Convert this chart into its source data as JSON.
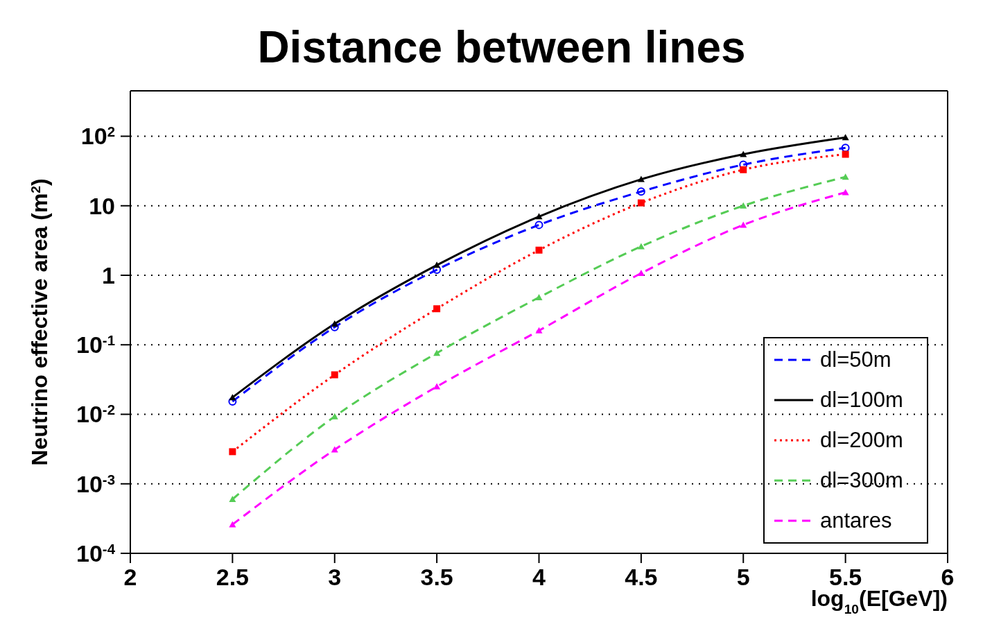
{
  "chart_data": {
    "type": "line",
    "title": "Distance between lines",
    "xlabel": "log$_{10}$(E[GeV])",
    "ylabel": "Neutrino effective area (m$^{2}$)",
    "x": [
      2.5,
      3,
      3.5,
      4,
      4.5,
      5,
      5.5
    ],
    "series": [
      {
        "name": "dl=50m",
        "color": "#0000ff",
        "line_style": "dashed",
        "marker": "circle",
        "values": [
          0.0153,
          0.18,
          1.2,
          5.3,
          16,
          39,
          68
        ]
      },
      {
        "name": "dl=100m",
        "color": "#000000",
        "line_style": "solid",
        "marker": "triangle",
        "values": [
          0.0175,
          0.2,
          1.4,
          7,
          24,
          55,
          96
        ]
      },
      {
        "name": "dl=200m",
        "color": "#ff0000",
        "line_style": "dotted",
        "marker": "square",
        "values": [
          0.0029,
          0.037,
          0.33,
          2.3,
          11,
          33,
          55
        ]
      },
      {
        "name": "dl=300m",
        "color": "#55cc55",
        "line_style": "dashed",
        "marker": "triangle",
        "values": [
          0.0006,
          0.0093,
          0.076,
          0.48,
          2.6,
          10,
          26
        ]
      },
      {
        "name": "antares",
        "color": "#ff00ff",
        "line_style": "dashed",
        "marker": "triangle",
        "values": [
          0.00026,
          0.0031,
          0.025,
          0.16,
          1.07,
          5.3,
          15.6
        ]
      }
    ],
    "log": "y",
    "xlim": [
      2,
      6
    ],
    "xticks": [
      2,
      2.5,
      3,
      3.5,
      4,
      4.5,
      5,
      5.5,
      6
    ],
    "ylim": [
      0.0001,
      450
    ],
    "yticks": [
      {
        "value": 0.0001,
        "label": "10$^{-4}$"
      },
      {
        "value": 0.001,
        "label": "10$^{-3}$"
      },
      {
        "value": 0.01,
        "label": "10$^{-2}$"
      },
      {
        "value": 0.1,
        "label": "10$^{-1}$"
      },
      1,
      10,
      {
        "value": 100,
        "label": "10$^{2}$"
      }
    ],
    "grid": "y",
    "legend": "bottom right"
  }
}
